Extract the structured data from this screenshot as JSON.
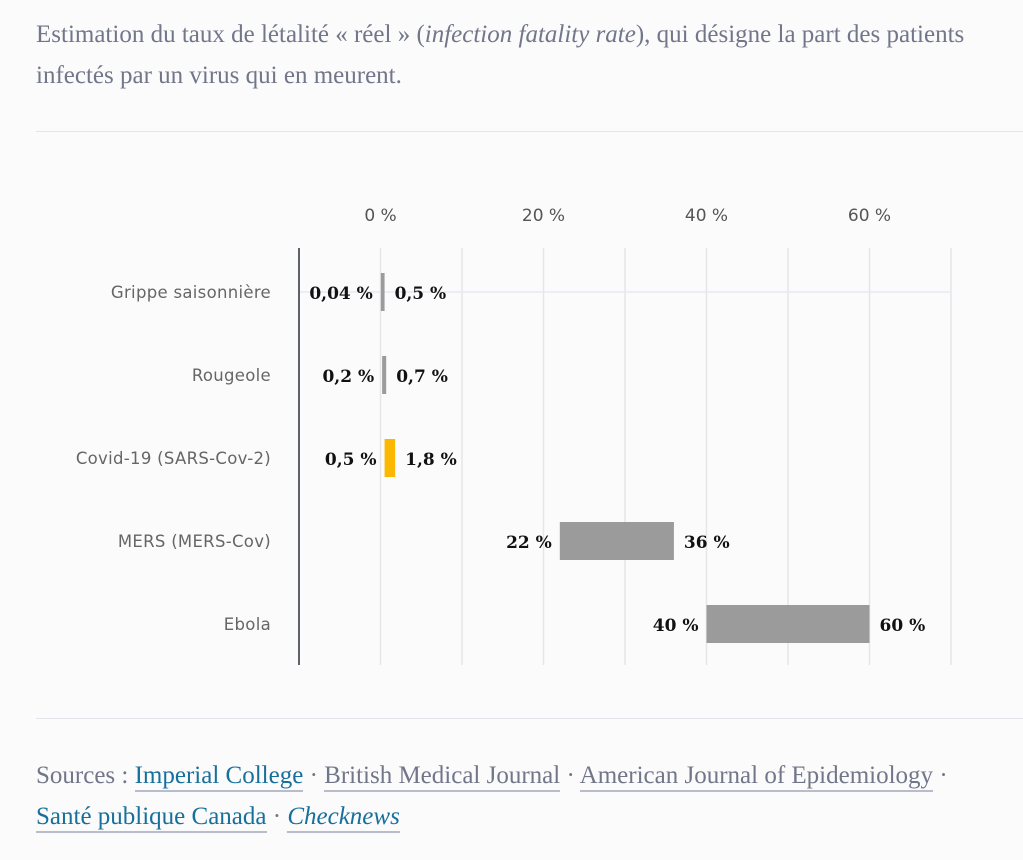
{
  "intro": {
    "before": "Estimation du taux de létalité « réel » (",
    "italic": "infection fatality rate",
    "after": "), qui désigne la part des patients infectés par un virus qui en meurent."
  },
  "chart_data": {
    "type": "bar",
    "orientation": "horizontal-range",
    "categories": [
      "Grippe saisonnière",
      "Rougeole",
      "Covid-19 (SARS-Cov-2)",
      "MERS (MERS-Cov)",
      "Ebola"
    ],
    "series": [
      {
        "low": [
          0.04,
          0.2,
          0.5,
          22,
          40
        ],
        "high": [
          0.5,
          0.7,
          1.8,
          36,
          60
        ]
      }
    ],
    "low_labels": [
      "0,04 %",
      "0,2 %",
      "0,5 %",
      "22 %",
      "40 %"
    ],
    "high_labels": [
      "0,5 %",
      "0,7 %",
      "1,8 %",
      "36 %",
      "60 %"
    ],
    "colors": [
      "#9b9b9b",
      "#9b9b9b",
      "#fbb800",
      "#9b9b9b",
      "#9b9b9b"
    ],
    "xticks": [
      0,
      20,
      40,
      60
    ],
    "xtick_labels": [
      "0 %",
      "20 %",
      "40 %",
      "60 %"
    ],
    "xlim": [
      -10,
      70
    ],
    "grid": true,
    "title": "",
    "xlabel": "",
    "ylabel": ""
  },
  "sources": {
    "label": "Sources : ",
    "links": [
      {
        "text": "Imperial College",
        "style": "highlight"
      },
      {
        "text": "British Medical Journal",
        "style": "plain"
      },
      {
        "text": "American Journal of Epidemiology",
        "style": "plain"
      },
      {
        "text": "Santé publique Canada",
        "style": "highlight"
      },
      {
        "text": "Checknews",
        "style": "highlight-italic"
      }
    ],
    "separator": " · "
  }
}
